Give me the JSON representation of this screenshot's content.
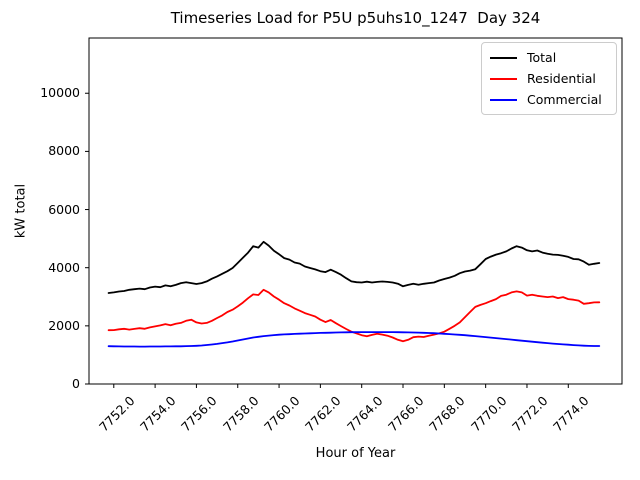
{
  "chart_data": {
    "type": "line",
    "title": "Timeseries Load for P5U p5uhs10_1247  Day 324",
    "xlabel": "Hour of Year",
    "ylabel": "kW total",
    "xlim": [
      7750.8,
      7776.6
    ],
    "ylim": [
      0,
      11900
    ],
    "grid": false,
    "xticks": [
      7752.0,
      7754.0,
      7756.0,
      7758.0,
      7760.0,
      7762.0,
      7764.0,
      7766.0,
      7768.0,
      7770.0,
      7772.0,
      7774.0
    ],
    "xtick_labels": [
      "7752.0",
      "7754.0",
      "7756.0",
      "7758.0",
      "7760.0",
      "7762.0",
      "7764.0",
      "7766.0",
      "7768.0",
      "7770.0",
      "7772.0",
      "7774.0"
    ],
    "yticks": [
      0,
      2000,
      4000,
      6000,
      8000,
      10000
    ],
    "ytick_labels": [
      "0",
      "2000",
      "4000",
      "6000",
      "8000",
      "10000"
    ],
    "legend": {
      "position": "upper right"
    },
    "x": [
      7751.75,
      7752.0,
      7752.25,
      7752.5,
      7752.75,
      7753.0,
      7753.25,
      7753.5,
      7753.75,
      7754.0,
      7754.25,
      7754.5,
      7754.75,
      7755.0,
      7755.25,
      7755.5,
      7755.75,
      7756.0,
      7756.25,
      7756.5,
      7756.75,
      7757.0,
      7757.25,
      7757.5,
      7757.75,
      7758.0,
      7758.25,
      7758.5,
      7758.75,
      7759.0,
      7759.25,
      7759.5,
      7759.75,
      7760.0,
      7760.25,
      7760.5,
      7760.75,
      7761.0,
      7761.25,
      7761.5,
      7761.75,
      7762.0,
      7762.25,
      7762.5,
      7762.75,
      7763.0,
      7763.25,
      7763.5,
      7763.75,
      7764.0,
      7764.25,
      7764.5,
      7764.75,
      7765.0,
      7765.25,
      7765.5,
      7765.75,
      7766.0,
      7766.25,
      7766.5,
      7766.75,
      7767.0,
      7767.25,
      7767.5,
      7767.75,
      7768.0,
      7768.25,
      7768.5,
      7768.75,
      7769.0,
      7769.25,
      7769.5,
      7769.75,
      7770.0,
      7770.25,
      7770.5,
      7770.75,
      7771.0,
      7771.25,
      7771.5,
      7771.75,
      7772.0,
      7772.25,
      7772.5,
      7772.75,
      7773.0,
      7773.25,
      7773.5,
      7773.75,
      7774.0,
      7774.25,
      7774.5,
      7774.75,
      7775.0,
      7775.25,
      7775.5
    ],
    "series": [
      {
        "name": "Total",
        "color": "#000000",
        "values": [
          3130,
          3150,
          3180,
          3200,
          3240,
          3260,
          3280,
          3260,
          3320,
          3350,
          3330,
          3390,
          3360,
          3410,
          3470,
          3500,
          3470,
          3440,
          3470,
          3530,
          3620,
          3700,
          3790,
          3880,
          3990,
          4160,
          4340,
          4520,
          4740,
          4690,
          4890,
          4760,
          4580,
          4460,
          4330,
          4280,
          4180,
          4140,
          4040,
          3990,
          3940,
          3880,
          3850,
          3930,
          3850,
          3760,
          3640,
          3530,
          3500,
          3490,
          3520,
          3490,
          3510,
          3525,
          3510,
          3490,
          3450,
          3360,
          3410,
          3445,
          3415,
          3445,
          3470,
          3490,
          3560,
          3610,
          3660,
          3720,
          3810,
          3870,
          3900,
          3950,
          4120,
          4300,
          4380,
          4450,
          4500,
          4560,
          4660,
          4740,
          4690,
          4600,
          4560,
          4590,
          4520,
          4480,
          4450,
          4440,
          4410,
          4370,
          4300,
          4290,
          4210,
          4100,
          4135,
          4160
        ]
      },
      {
        "name": "Residential",
        "color": "#ff0000",
        "values": [
          1850,
          1855,
          1880,
          1900,
          1870,
          1895,
          1920,
          1900,
          1945,
          1980,
          2015,
          2060,
          2020,
          2070,
          2100,
          2175,
          2210,
          2120,
          2080,
          2100,
          2175,
          2270,
          2360,
          2475,
          2555,
          2670,
          2800,
          2950,
          3080,
          3060,
          3240,
          3150,
          3010,
          2900,
          2780,
          2700,
          2600,
          2520,
          2440,
          2380,
          2320,
          2210,
          2130,
          2200,
          2090,
          1990,
          1890,
          1800,
          1740,
          1680,
          1640,
          1690,
          1730,
          1700,
          1660,
          1600,
          1520,
          1470,
          1520,
          1610,
          1630,
          1615,
          1660,
          1700,
          1740,
          1800,
          1900,
          2000,
          2120,
          2300,
          2480,
          2650,
          2720,
          2780,
          2850,
          2920,
          3030,
          3070,
          3150,
          3185,
          3150,
          3040,
          3070,
          3035,
          3010,
          2990,
          3010,
          2955,
          2990,
          2920,
          2900,
          2870,
          2760,
          2780,
          2805,
          2810
        ]
      },
      {
        "name": "Commercial",
        "color": "#0000ff",
        "values": [
          1300,
          1295,
          1293,
          1291,
          1290,
          1289,
          1288,
          1288,
          1289,
          1290,
          1291,
          1292,
          1293,
          1295,
          1298,
          1302,
          1308,
          1315,
          1325,
          1340,
          1358,
          1380,
          1405,
          1432,
          1462,
          1495,
          1530,
          1565,
          1598,
          1625,
          1648,
          1666,
          1681,
          1694,
          1705,
          1714,
          1722,
          1730,
          1737,
          1744,
          1750,
          1756,
          1761,
          1766,
          1770,
          1774,
          1777,
          1780,
          1782,
          1784,
          1785,
          1786,
          1786,
          1786,
          1785,
          1784,
          1782,
          1779,
          1776,
          1772,
          1767,
          1761,
          1754,
          1746,
          1737,
          1727,
          1716,
          1704,
          1691,
          1677,
          1662,
          1647,
          1631,
          1614,
          1597,
          1580,
          1562,
          1544,
          1526,
          1508,
          1490,
          1472,
          1455,
          1438,
          1422,
          1406,
          1391,
          1377,
          1363,
          1350,
          1338,
          1327,
          1318,
          1312,
          1308,
          1306
        ]
      }
    ]
  }
}
